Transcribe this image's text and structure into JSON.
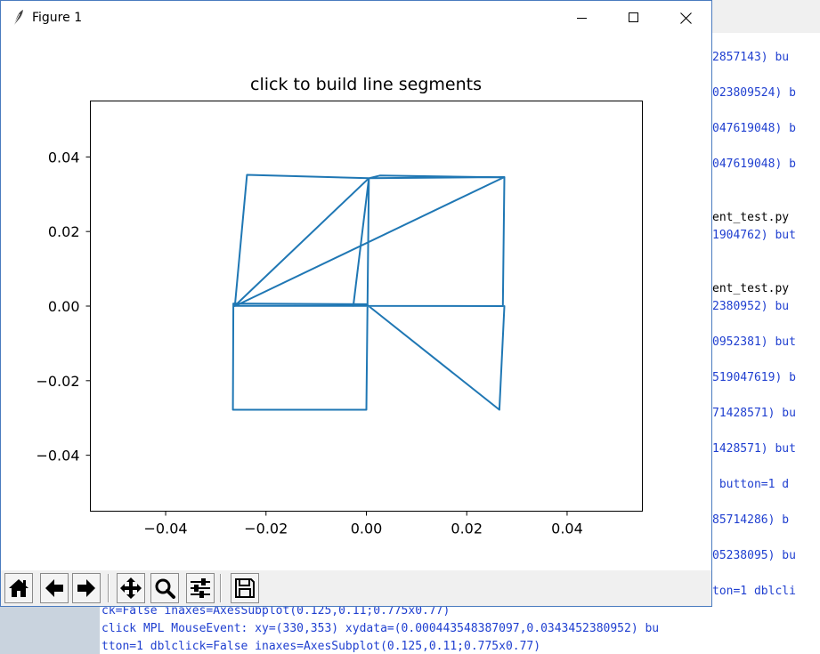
{
  "window": {
    "title": "Figure 1"
  },
  "console": {
    "right_lines": [
      "2857143) bu",
      "023809524) b",
      "047619048) b",
      "047619048) b",
      "ent_test.py",
      "1904762) but",
      "ent_test.py",
      "2380952) bu",
      "0952381) but",
      "519047619) b",
      "71428571) bu",
      "1428571) but",
      " button=1 d",
      "85714286) b",
      "05238095) bu",
      "ton=1 dblcli"
    ],
    "bottom_lines": [
      "ck=False inaxes=AxesSubplot(0.125,0.11;0.775x0.77)",
      "click MPL MouseEvent: xy=(330,353) xydata=(0.000443548387097,0.0343452380952) bu",
      "tton=1 dblclick=False inaxes=AxesSubplot(0.125,0.11;0.775x0.77)"
    ]
  },
  "toolbar": {
    "buttons": [
      {
        "name": "home-button",
        "icon": "home-icon"
      },
      {
        "name": "back-button",
        "icon": "arrow-left-icon"
      },
      {
        "name": "forward-button",
        "icon": "arrow-right-icon"
      },
      {
        "name": "pan-button",
        "icon": "move-icon"
      },
      {
        "name": "zoom-button",
        "icon": "magnifier-icon"
      },
      {
        "name": "configure-subplots-button",
        "icon": "sliders-icon"
      },
      {
        "name": "save-button",
        "icon": "floppy-disk-icon"
      }
    ]
  },
  "chart_data": {
    "type": "line",
    "title": "click to build line segments",
    "xlabel": "",
    "ylabel": "",
    "xlim": [
      -0.055,
      0.055
    ],
    "ylim": [
      -0.055,
      0.055
    ],
    "xticks": [
      "−0.04",
      "−0.02",
      "0.00",
      "0.02",
      "0.04"
    ],
    "yticks": [
      "0.04",
      "0.02",
      "0.00",
      "−0.02",
      "−0.04"
    ],
    "xtick_values": [
      -0.04,
      -0.02,
      0.0,
      0.02,
      0.04
    ],
    "ytick_values": [
      0.04,
      0.02,
      0.0,
      -0.02,
      -0.04
    ],
    "line_color": "#1f77b4",
    "series": [
      {
        "x": [
          -0.0026,
          0.0005,
          0.0275,
          0.0272,
          -0.0265,
          -0.0262,
          0.0005,
          0.0027,
          0.0275,
          0.0275,
          -0.0262,
          -0.0238,
          0.0005,
          0.0,
          -0.0266,
          -0.0265,
          0.0,
          0.0265,
          0.0275
        ],
        "y": [
          0.0,
          0.0343,
          0.0346,
          0.0,
          0.0001,
          0.0001,
          0.0343,
          0.035,
          0.0345,
          0.0346,
          0.0,
          0.0352,
          0.0343,
          -0.0278,
          -0.0278,
          0.0007,
          0.0005,
          -0.0278,
          0.0
        ]
      }
    ]
  }
}
